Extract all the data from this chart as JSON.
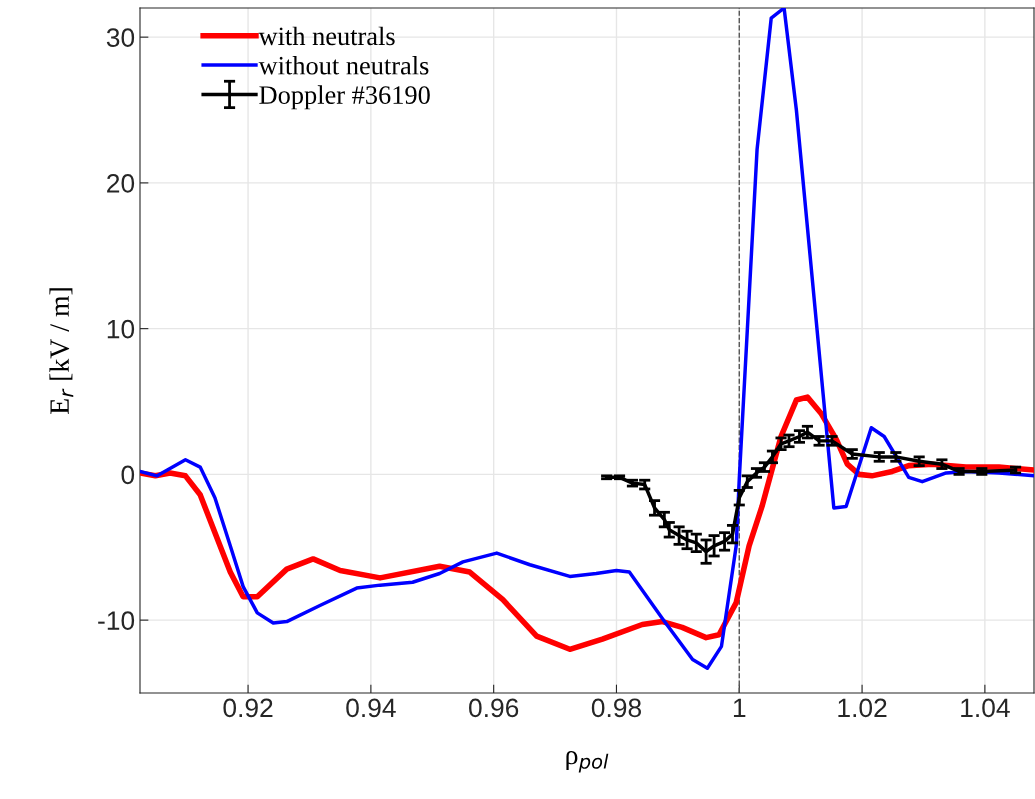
{
  "chart_data": {
    "type": "line",
    "xlabel": "ρ$_{pol}$",
    "ylabel": "E$_{r}$ [kV / m]",
    "xlim": [
      0.9024,
      1.048
    ],
    "ylim": [
      -15,
      32
    ],
    "xticks": [
      0.92,
      0.94,
      0.96,
      0.98,
      1,
      1.02,
      1.04
    ],
    "yticks": [
      -10,
      0,
      10,
      20,
      30
    ],
    "grid": true,
    "legend": "top left",
    "marker": "none",
    "line_style": "solid",
    "ref_lines": [
      {
        "axis": "x",
        "value": 1,
        "color": "#555555",
        "line_style": "dashed"
      }
    ],
    "series": [
      {
        "name": "with neutrals",
        "color": "#ff0000",
        "x": [
          0.9024,
          0.9049,
          0.9073,
          0.9098,
          0.9122,
          0.9171,
          0.9192,
          0.9215,
          0.9263,
          0.9306,
          0.935,
          0.9415,
          0.9512,
          0.9561,
          0.9615,
          0.967,
          0.9724,
          0.9777,
          0.9842,
          0.9875,
          0.9907,
          0.9946,
          0.9967,
          0.9995,
          1.0016,
          1.0037,
          1.0068,
          1.0093,
          1.0111,
          1.0133,
          1.0158,
          1.0176,
          1.0195,
          1.0216,
          1.0249,
          1.0276,
          1.0314,
          1.0369,
          1.0423,
          1.048
        ],
        "values": [
          0.1,
          -0.1,
          0.1,
          -0.1,
          -1.4,
          -6.7,
          -8.4,
          -8.4,
          -6.5,
          -5.8,
          -6.6,
          -7.1,
          -6.3,
          -6.7,
          -8.6,
          -11.1,
          -12.0,
          -11.3,
          -10.3,
          -10.1,
          -10.5,
          -11.2,
          -11.0,
          -8.8,
          -4.9,
          -2.2,
          2.6,
          5.1,
          5.3,
          4.2,
          2.4,
          0.7,
          0,
          -0.1,
          0.2,
          0.6,
          0.7,
          0.5,
          0.5,
          0.3
        ]
      },
      {
        "name": "without neutrals",
        "color": "#0000ff",
        "x": [
          0.9024,
          0.9052,
          0.9098,
          0.9122,
          0.9146,
          0.9171,
          0.9192,
          0.9215,
          0.9241,
          0.9263,
          0.9317,
          0.9377,
          0.9415,
          0.9468,
          0.9512,
          0.955,
          0.9605,
          0.9659,
          0.9724,
          0.9767,
          0.98,
          0.9821,
          0.9875,
          0.9924,
          0.9948,
          0.9971,
          0.9995,
          1.0,
          1.0029,
          1.0052,
          1.0073,
          1.0093,
          1.0154,
          1.0174,
          1.0215,
          1.0236,
          1.0276,
          1.0298,
          1.0337,
          1.0369,
          1.0423,
          1.048
        ],
        "values": [
          0.2,
          -0.1,
          1.0,
          0.5,
          -1.6,
          -4.9,
          -7.7,
          -9.5,
          -10.2,
          -10.1,
          -9.0,
          -7.8,
          -7.6,
          -7.4,
          -6.8,
          -6.0,
          -5.4,
          -6.2,
          -7.0,
          -6.8,
          -6.6,
          -6.7,
          -9.9,
          -12.7,
          -13.3,
          -11.8,
          -4.9,
          -0.3,
          22.3,
          31.3,
          32.0,
          25.0,
          -2.3,
          -2.2,
          3.2,
          2.6,
          -0.2,
          -0.5,
          0.1,
          0.2,
          0.1,
          -0.1
        ]
      },
      {
        "name": "Doppler #36190",
        "color": "#000000",
        "x": [
          0.9784,
          0.9805,
          0.9826,
          0.9846,
          0.9862,
          0.9878,
          0.9886,
          0.9902,
          0.9915,
          0.993,
          0.9946,
          0.9959,
          0.9976,
          0.9989,
          1.0,
          1.0013,
          1.0028,
          1.0041,
          1.0054,
          1.0068,
          1.0081,
          1.0098,
          1.0111,
          1.013,
          1.0151,
          1.0184,
          1.0228,
          1.0255,
          1.0293,
          1.033,
          1.0358,
          1.0395,
          1.045
        ],
        "values": [
          -0.2,
          -0.2,
          -0.6,
          -0.7,
          -2.3,
          -3.1,
          -3.8,
          -4.2,
          -4.5,
          -4.7,
          -5.3,
          -4.9,
          -4.6,
          -4.1,
          -1.6,
          -0.5,
          0.1,
          0.5,
          1.2,
          2.1,
          2.3,
          2.6,
          2.9,
          2.3,
          2.3,
          1.4,
          1.2,
          1.2,
          0.9,
          0.7,
          0.2,
          0.2,
          0.3
        ],
        "errors": [
          0.1,
          0.1,
          0.2,
          0.3,
          0.5,
          0.5,
          0.5,
          0.6,
          0.6,
          0.6,
          0.8,
          0.7,
          0.6,
          0.6,
          0.5,
          0.4,
          0.3,
          0.3,
          0.4,
          0.4,
          0.4,
          0.4,
          0.4,
          0.3,
          0.3,
          0.3,
          0.3,
          0.3,
          0.3,
          0.3,
          0.2,
          0.2,
          0.2
        ]
      }
    ]
  }
}
